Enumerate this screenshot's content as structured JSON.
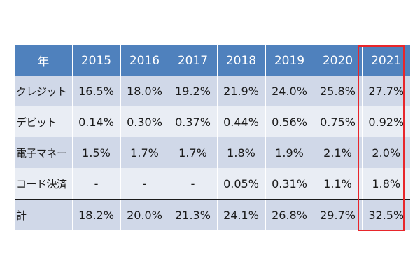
{
  "chart_data": {
    "type": "table",
    "header": {
      "label": "年",
      "years": [
        "2015",
        "2016",
        "2017",
        "2018",
        "2019",
        "2020",
        "2021"
      ]
    },
    "rows": [
      {
        "label": "クレジット",
        "cells": [
          "16.5%",
          "18.0%",
          "19.2%",
          "21.9%",
          "24.0%",
          "25.8%",
          "27.7%"
        ]
      },
      {
        "label": "デビット",
        "cells": [
          "0.14%",
          "0.30%",
          "0.37%",
          "0.44%",
          "0.56%",
          "0.75%",
          "0.92%"
        ]
      },
      {
        "label": "電子マネー",
        "cells": [
          "1.5%",
          "1.7%",
          "1.7%",
          "1.8%",
          "1.9%",
          "2.1%",
          "2.0%"
        ]
      },
      {
        "label": "コード決済",
        "cells": [
          "-",
          "-",
          "-",
          "0.05%",
          "0.31%",
          "1.1%",
          "1.8%"
        ]
      },
      {
        "label": "計",
        "cells": [
          "18.2%",
          "20.0%",
          "21.3%",
          "24.1%",
          "26.8%",
          "29.7%",
          "32.5%"
        ]
      }
    ],
    "highlighted_column": "2021",
    "colors": {
      "header_bg": "#4f81bd",
      "header_text": "#ffffff",
      "band_dark": "#d0d8e8",
      "band_light": "#e9edf4",
      "highlight_border": "#e8262b"
    }
  }
}
